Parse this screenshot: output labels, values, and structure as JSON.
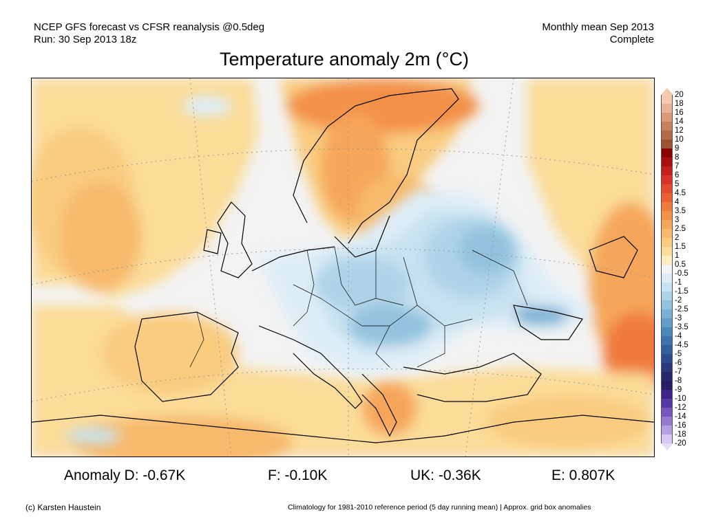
{
  "header": {
    "line1": "NCEP GFS forecast vs CFSR reanalysis @0.5deg",
    "line2": "Run: 30 Sep 2013 18z",
    "right1": "Monthly mean Sep 2013",
    "right2": "Complete"
  },
  "title": "Temperature anomaly 2m (°C)",
  "legend": {
    "labels": [
      "20",
      "18",
      "16",
      "14",
      "12",
      "10",
      "9",
      "8",
      "7",
      "6",
      "5",
      "4.5",
      "4",
      "3.5",
      "3",
      "2.5",
      "2",
      "1.5",
      "1",
      "0.5",
      "-0.5",
      "-1",
      "-1.5",
      "-2",
      "-2.5",
      "-3",
      "-3.5",
      "-4",
      "-4.5",
      "-5",
      "-6",
      "-7",
      "-8",
      "-9",
      "-10",
      "-12",
      "-14",
      "-16",
      "-18",
      "-20"
    ],
    "colors": [
      "#f6c9b1",
      "#e9b197",
      "#d99a7b",
      "#c7815f",
      "#b36a49",
      "#9c5333",
      "#8b0000",
      "#a81010",
      "#c41e1e",
      "#d93228",
      "#e54a2e",
      "#ec6034",
      "#f07a3c",
      "#f39149",
      "#f5a65a",
      "#f7b96c",
      "#f9cc80",
      "#fbdc99",
      "#fdecc0",
      "#f3f3f3",
      "#ddedf7",
      "#c7e2f0",
      "#aed3e8",
      "#93c2de",
      "#79b0d3",
      "#629dc7",
      "#4d88ba",
      "#3f73ab",
      "#345f9d",
      "#2b4c8e",
      "#28397d",
      "#27276c",
      "#2a1d6a",
      "#3c248c",
      "#5637a6",
      "#7656bc",
      "#967ad0",
      "#b7a0e2",
      "#d6c8f2"
    ],
    "top_arrow_color": "#f6c9b1",
    "bottom_arrow_color": "#e6ddf8"
  },
  "stats": {
    "d": "Anomaly D: -0.67K",
    "f": "F: -0.10K",
    "uk": "UK: -0.36K",
    "e": "E: 0.807K"
  },
  "footer": {
    "left": "(c) Karsten Haustein",
    "right": "Climatology for 1981-2010 reference period (5 day running mean) | Approx. grid box anomalies"
  }
}
